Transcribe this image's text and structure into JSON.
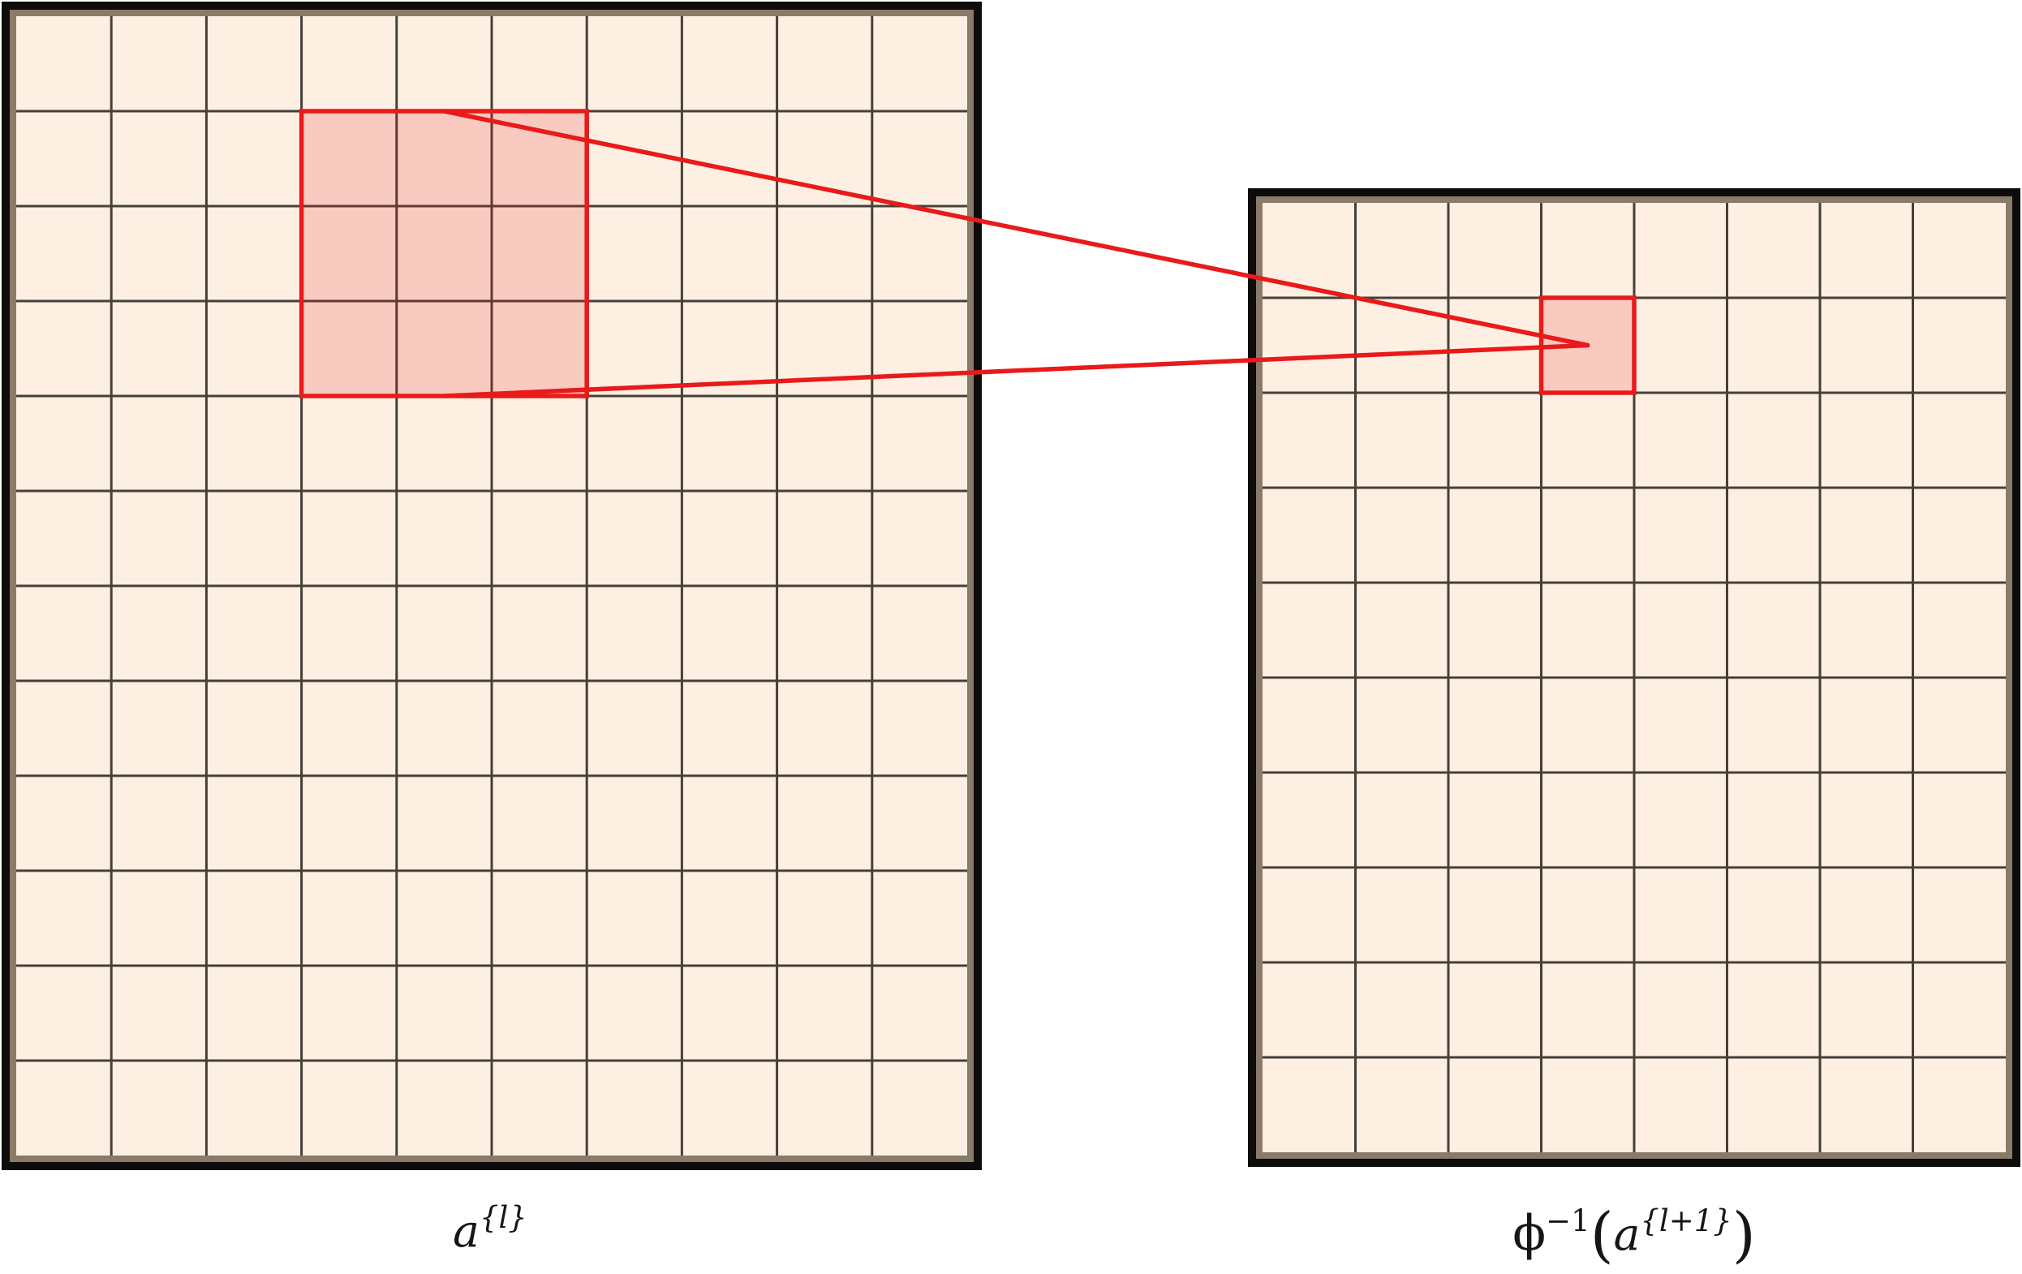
{
  "figure": {
    "type": "diagram",
    "description": "Mapping between a highlighted receptive-field block in feature map a^{l} and a single unit in phi^{-1}(a^{l+1})",
    "colors": {
      "background": "#ffffff",
      "cell_fill": "#fdefe2",
      "grid_line": "#45403a",
      "bevel": "#8a7b68",
      "border": "#0d0c0b",
      "red": "#e81a1a",
      "red_fill_opacity": 0.17
    },
    "left_grid": {
      "name": "feature map a^{l}",
      "cols": 10,
      "rows": 12,
      "highlight": {
        "col": 3,
        "row": 1,
        "col_span": 3,
        "row_span": 3
      }
    },
    "right_grid": {
      "name": "feature map phi^{-1}(a^{l+1})",
      "cols": 8,
      "rows": 10,
      "highlight": {
        "col": 3,
        "row": 1,
        "col_span": 1,
        "row_span": 1
      }
    },
    "labels": {
      "left": {
        "base": "a",
        "sup": "{l}"
      },
      "right": {
        "phi": "ϕ",
        "phi_sup": "−1",
        "open": "(",
        "base": "a",
        "sup": "{l+1}",
        "close": ")"
      }
    }
  }
}
